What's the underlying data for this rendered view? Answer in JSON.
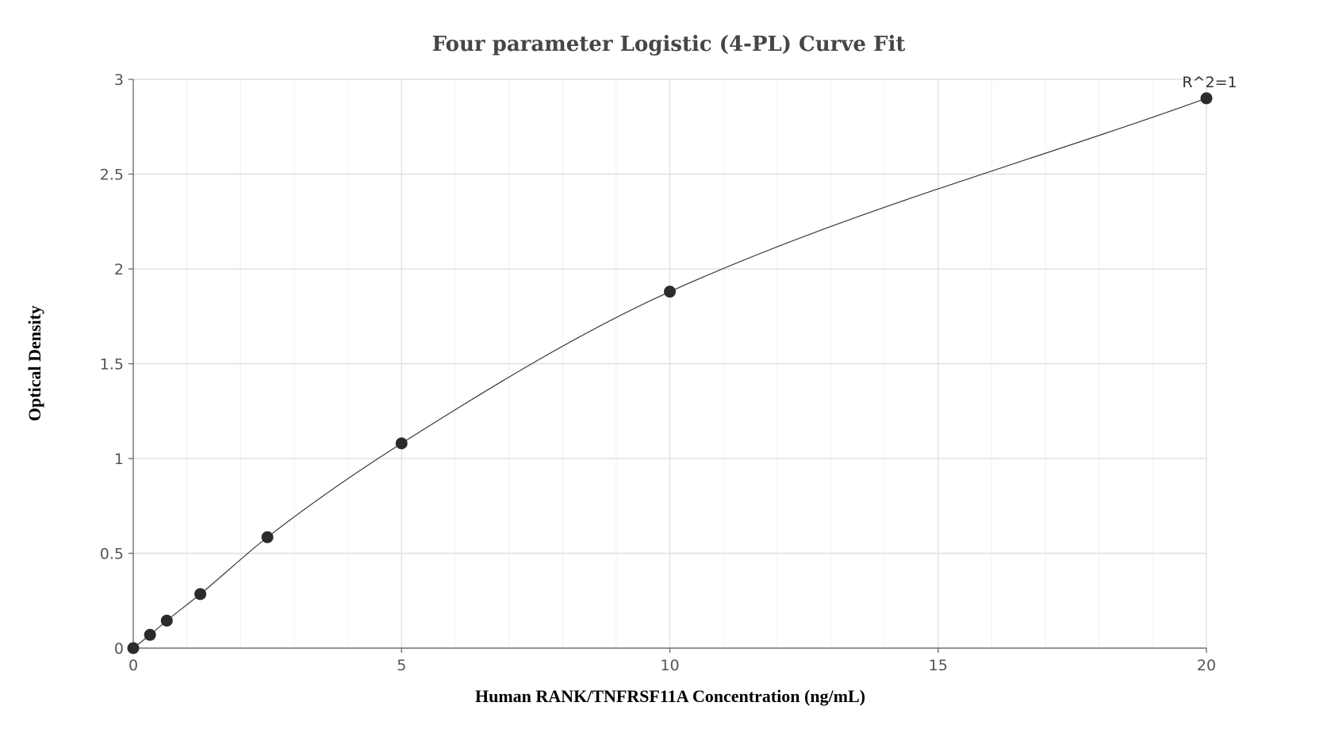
{
  "chart_data": {
    "type": "scatter",
    "title": "Four parameter Logistic (4-PL) Curve Fit",
    "xlabel": "Human RANK/TNFRSF11A Concentration (ng/mL)",
    "ylabel": "Optical Density",
    "xlim": [
      0,
      20
    ],
    "ylim": [
      0,
      3
    ],
    "x_ticks": [
      0,
      5,
      10,
      15,
      20
    ],
    "y_ticks": [
      0,
      0.5,
      1,
      1.5,
      2,
      2.5,
      3
    ],
    "grid": true,
    "series": [
      {
        "points": [
          {
            "x": 0,
            "y": 0
          },
          {
            "x": 0.3125,
            "y": 0.07
          },
          {
            "x": 0.625,
            "y": 0.145
          },
          {
            "x": 1.25,
            "y": 0.285
          },
          {
            "x": 2.5,
            "y": 0.585
          },
          {
            "x": 5,
            "y": 1.08
          },
          {
            "x": 10,
            "y": 1.88
          },
          {
            "x": 20,
            "y": 2.9
          }
        ]
      }
    ],
    "annotation": "R^2=1",
    "colors": {
      "points": "#2b2b2b",
      "curve": "#3a3a3a",
      "grid": "#dde0ea",
      "axis": "#6e7079"
    }
  }
}
